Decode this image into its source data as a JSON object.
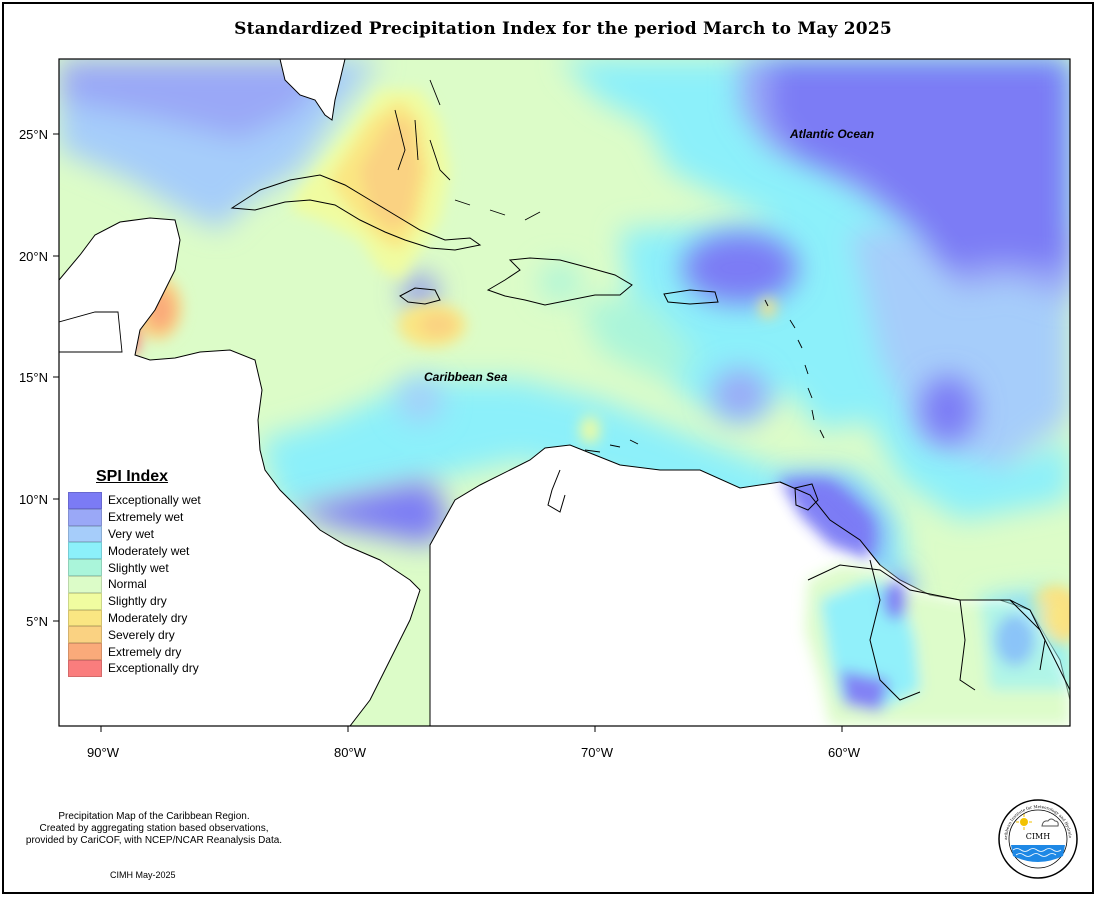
{
  "title": "Standardized Precipitation Index for the period March to May 2025",
  "axes": {
    "lat_ticks": [
      "25°N",
      "20°N",
      "15°N",
      "10°N",
      "5°N"
    ],
    "lon_ticks": [
      "90°W",
      "80°W",
      "70°W",
      "60°W"
    ]
  },
  "labels": {
    "atlantic": "Atlantic Ocean",
    "caribbean": "Caribbean Sea"
  },
  "legend": {
    "title": "SPI Index",
    "items": [
      {
        "label": "Exceptionally wet",
        "color": "#7b7bf5"
      },
      {
        "label": "Extremely wet",
        "color": "#9aa8f7"
      },
      {
        "label": "Very wet",
        "color": "#a6cdfa"
      },
      {
        "label": "Moderately wet",
        "color": "#8cf0fa"
      },
      {
        "label": "Slightly wet",
        "color": "#aaf5da"
      },
      {
        "label": "Normal",
        "color": "#dcfcc8"
      },
      {
        "label": "Slightly dry",
        "color": "#f0fca0"
      },
      {
        "label": "Moderately dry",
        "color": "#fae682"
      },
      {
        "label": "Severely dry",
        "color": "#fad282"
      },
      {
        "label": "Extremely dry",
        "color": "#faaa7a"
      },
      {
        "label": "Exceptionally dry",
        "color": "#fa7d7d"
      }
    ]
  },
  "footer": {
    "line1": "Precipitation Map of the Caribbean Region.",
    "line2": "Created by aggregating station based observations,",
    "line3": "provided by CariCOF, with NCEP/NCAR Reanalysis Data.",
    "date": "CIMH May-2025"
  },
  "logo": {
    "name": "Caribbean Institute for Meteorology and Hydrology",
    "abbr": "CIMH"
  }
}
